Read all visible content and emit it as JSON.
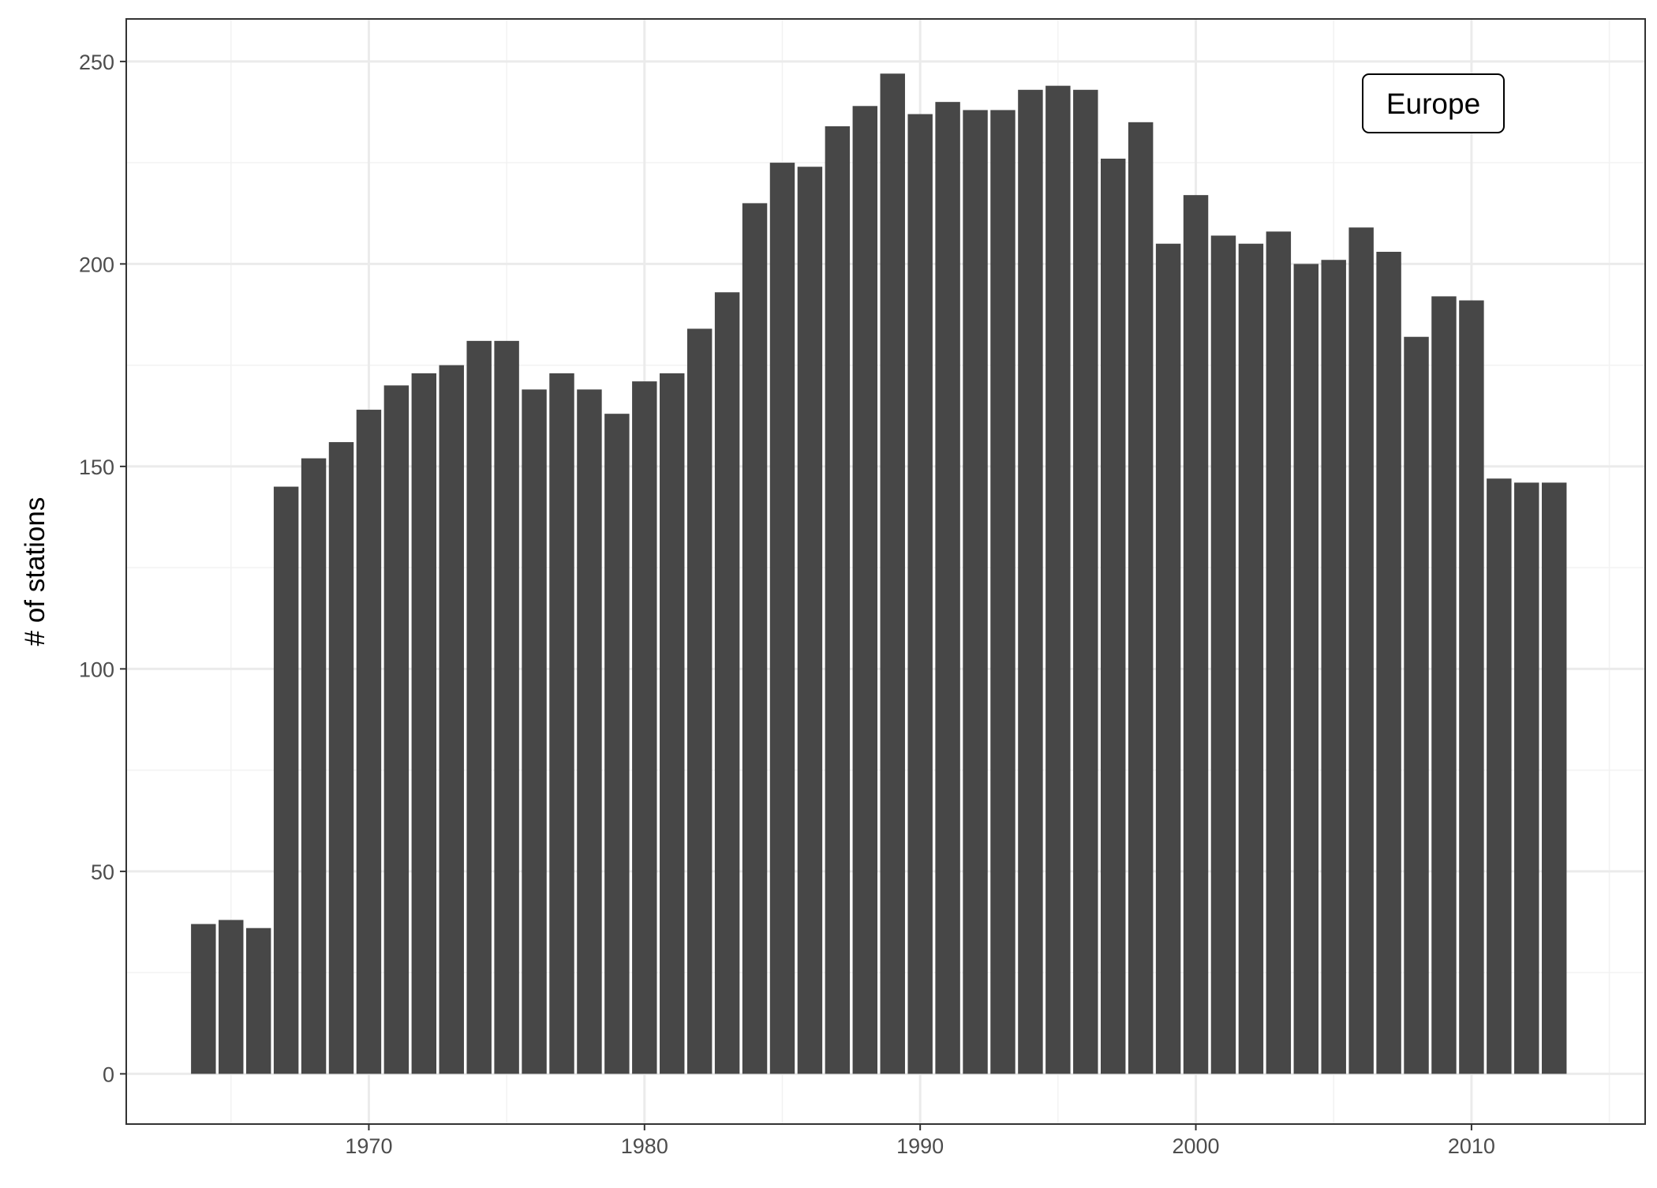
{
  "colors": {
    "bar": "#474747",
    "panel_border": "#333333",
    "grid_major": "#ebebeb",
    "grid_minor": "#f2f2f2",
    "background": "#ffffff"
  },
  "chart_data": {
    "type": "bar",
    "title": "",
    "xlabel": "",
    "ylabel": "# of stations",
    "annotation": "Europe",
    "annotation_placement": "top-right",
    "grid": true,
    "legend": "none",
    "xlim": [
      1961.2,
      2016.3
    ],
    "ylim": [
      -12.4,
      260.5
    ],
    "x_ticks": [
      1970,
      1980,
      1990,
      2000,
      2010
    ],
    "y_ticks": [
      0,
      50,
      100,
      150,
      200,
      250
    ],
    "x": [
      1964,
      1965,
      1966,
      1967,
      1968,
      1969,
      1970,
      1971,
      1972,
      1973,
      1974,
      1975,
      1976,
      1977,
      1978,
      1979,
      1980,
      1981,
      1982,
      1983,
      1984,
      1985,
      1986,
      1987,
      1988,
      1989,
      1990,
      1991,
      1992,
      1993,
      1994,
      1995,
      1996,
      1997,
      1998,
      1999,
      2000,
      2001,
      2002,
      2003,
      2004,
      2005,
      2006,
      2007,
      2008,
      2009,
      2010,
      2011,
      2012,
      2013
    ],
    "values": [
      37,
      38,
      36,
      145,
      152,
      156,
      164,
      170,
      173,
      175,
      181,
      181,
      169,
      173,
      169,
      163,
      171,
      173,
      184,
      193,
      215,
      225,
      224,
      234,
      239,
      247,
      237,
      240,
      238,
      238,
      243,
      244,
      243,
      226,
      235,
      205,
      217,
      207,
      205,
      208,
      200,
      201,
      209,
      203,
      182,
      192,
      191,
      147,
      146,
      146
    ]
  }
}
